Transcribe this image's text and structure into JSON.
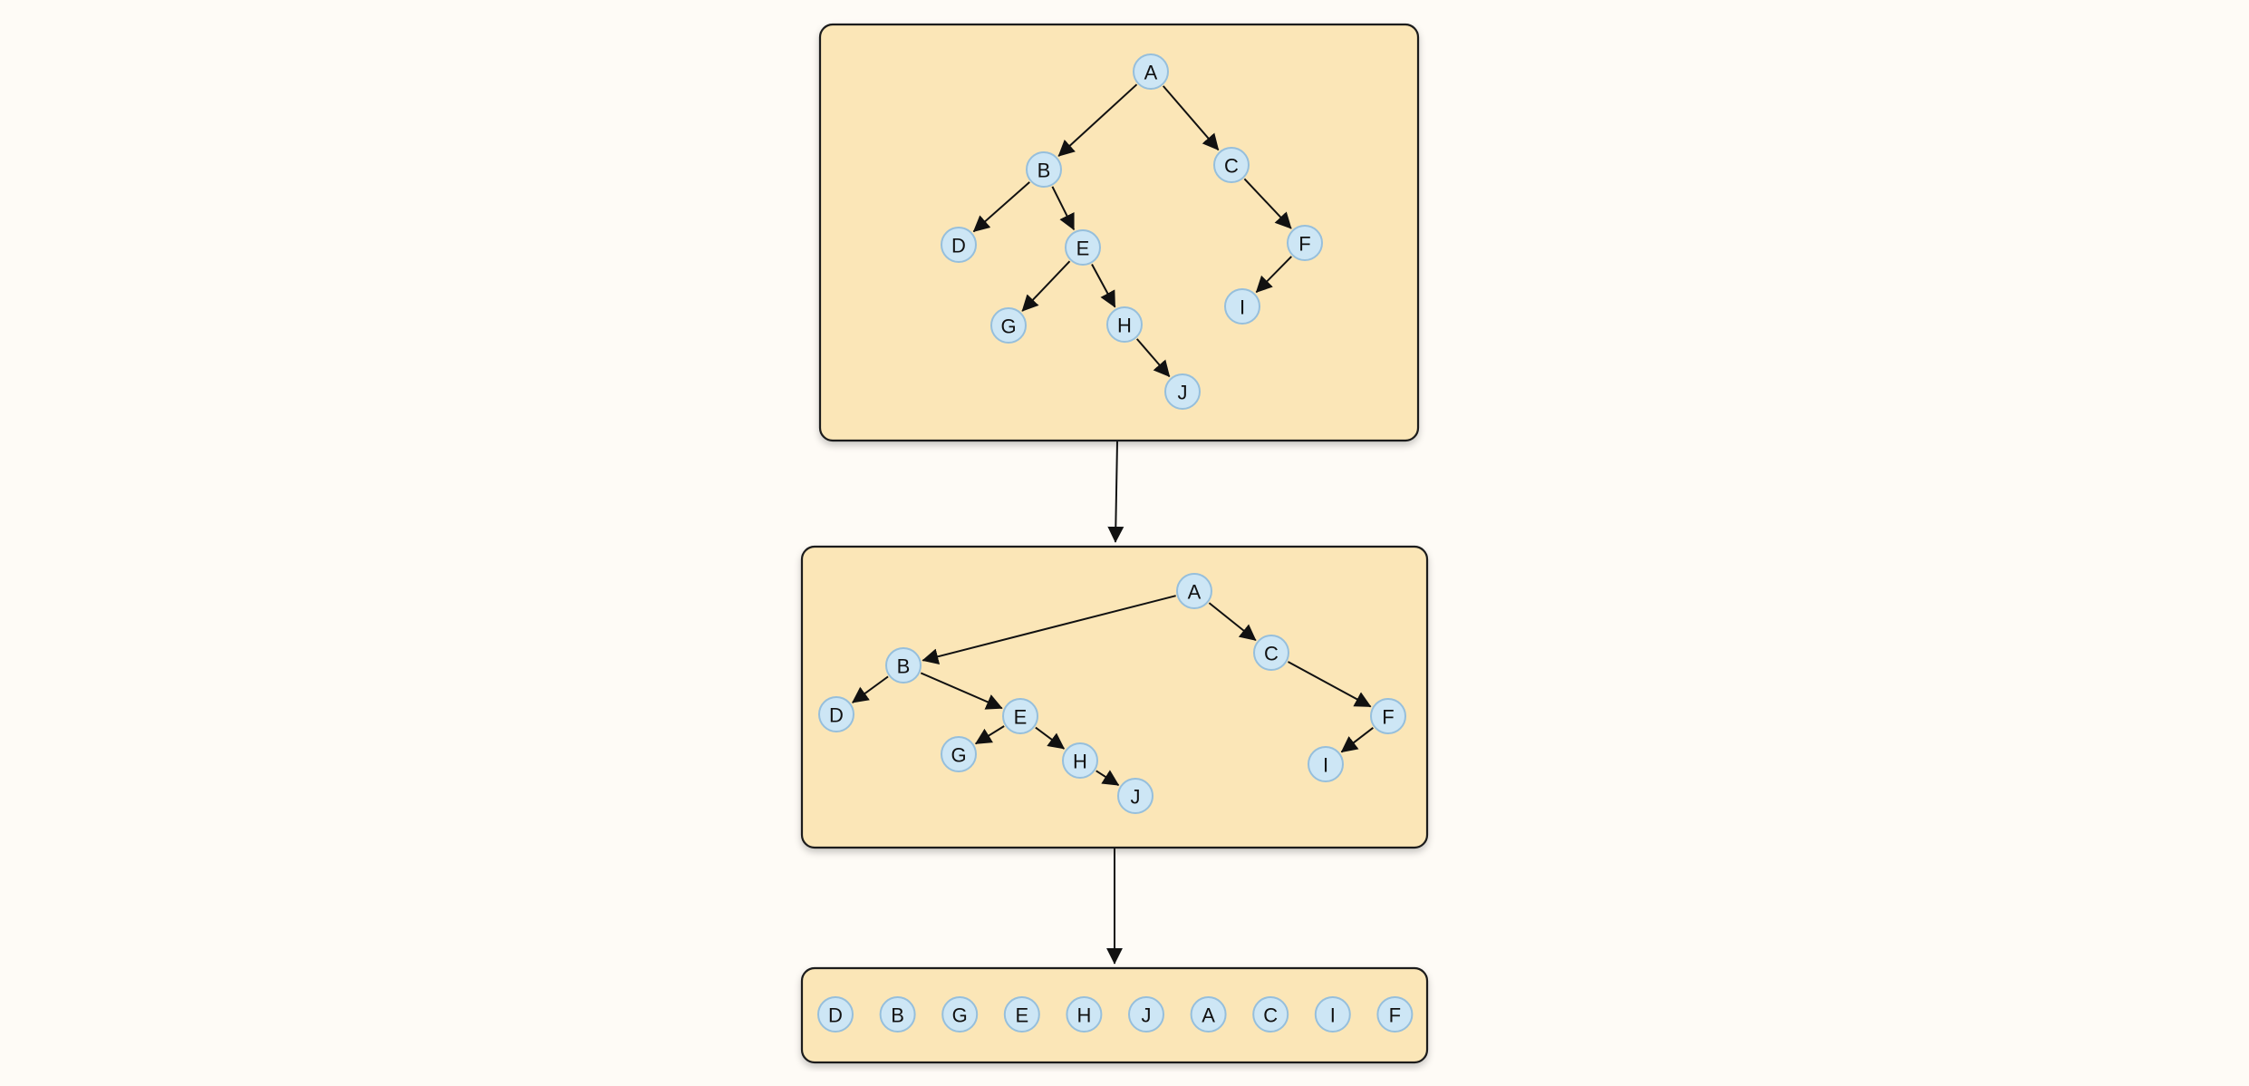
{
  "diagram": {
    "tree_nodes": [
      {
        "id": "A",
        "label": "A"
      },
      {
        "id": "B",
        "label": "B"
      },
      {
        "id": "C",
        "label": "C"
      },
      {
        "id": "D",
        "label": "D"
      },
      {
        "id": "E",
        "label": "E"
      },
      {
        "id": "F",
        "label": "F"
      },
      {
        "id": "G",
        "label": "G"
      },
      {
        "id": "H",
        "label": "H"
      },
      {
        "id": "I",
        "label": "I"
      },
      {
        "id": "J",
        "label": "J"
      }
    ],
    "tree_edges": [
      {
        "from": "A",
        "to": "B"
      },
      {
        "from": "A",
        "to": "C"
      },
      {
        "from": "B",
        "to": "D"
      },
      {
        "from": "B",
        "to": "E"
      },
      {
        "from": "E",
        "to": "G"
      },
      {
        "from": "E",
        "to": "H"
      },
      {
        "from": "H",
        "to": "J"
      },
      {
        "from": "C",
        "to": "F"
      },
      {
        "from": "F",
        "to": "I"
      }
    ],
    "sequence": [
      "D",
      "B",
      "G",
      "E",
      "H",
      "J",
      "A",
      "C",
      "I",
      "F"
    ],
    "colors": {
      "panel_fill": "#fbe6b7",
      "panel_border": "#1a1a1a",
      "node_fill": "#cde6f5",
      "node_border": "#96bfdc",
      "background": "#fefbf6"
    }
  }
}
